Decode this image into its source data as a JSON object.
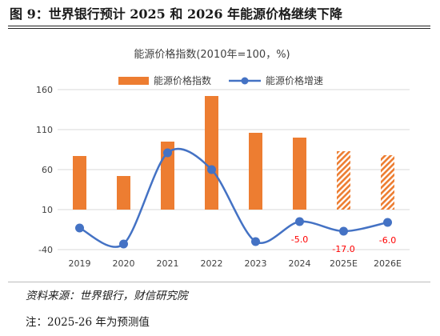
{
  "figure": {
    "title": "图 9：世界银行预计 2025 和 2026 年能源价格继续下降",
    "source": "资料来源：世界银行，财信研究院",
    "note": "注：2025-26 年为预测值"
  },
  "colors": {
    "bar": "#ED7D31",
    "line": "#4472C4",
    "negative_label": "#FF0000",
    "grid": "#D9D9D9",
    "text": "#404040"
  },
  "chart_data": {
    "type": "bar",
    "title": "能源价格指数(2010年=100，%)",
    "categories": [
      "2019",
      "2020",
      "2021",
      "2022",
      "2023",
      "2024",
      "2025E",
      "2026E"
    ],
    "ylim": [
      -40,
      160
    ],
    "yticks": [
      "160",
      "110",
      "60",
      "10",
      "-40"
    ],
    "grid": true,
    "legend_position": "top",
    "series": [
      {
        "name": "能源价格指数",
        "type": "bar",
        "values": [
          77,
          52,
          95,
          152,
          106,
          100,
          83,
          78
        ],
        "forecast_from_index": 6
      },
      {
        "name": "能源价格增速",
        "type": "line",
        "values": [
          -13,
          -33,
          81,
          60,
          -30,
          -5.0,
          -17.0,
          -6.0
        ]
      }
    ],
    "data_labels": [
      {
        "category": "2024",
        "text": "-5.0"
      },
      {
        "category": "2025E",
        "text": "-17.0"
      },
      {
        "category": "2026E",
        "text": "-6.0"
      }
    ]
  }
}
